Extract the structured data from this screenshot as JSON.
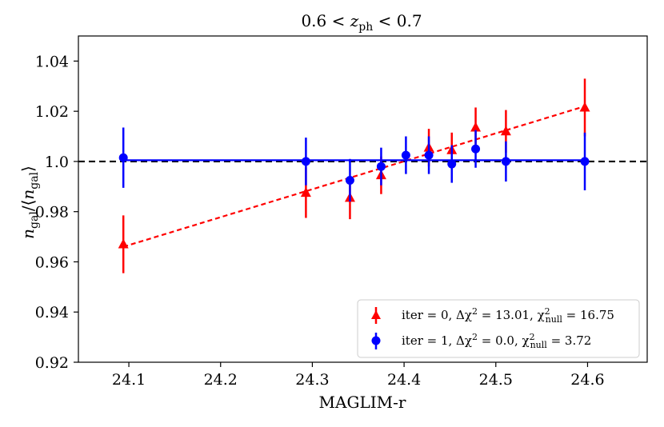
{
  "chart_data": {
    "type": "scatter",
    "title": "0.6 < z_ph < 0.7",
    "title_parts": {
      "lhs": "0.6 < ",
      "var": "z",
      "sub": "ph",
      "rhs": " < 0.7"
    },
    "xlabel": "MAGLIM-r",
    "ylabel": "n_gal/⟨n_gal⟩",
    "ylabel_parts": {
      "n1": "n",
      "sub1": "gal",
      "mid": "/⟨",
      "n2": "n",
      "sub2": "gal",
      "end": "⟩"
    },
    "xlim": [
      24.045,
      24.665
    ],
    "ylim": [
      0.92,
      1.05
    ],
    "xticks": [
      "24.1",
      "24.2",
      "24.3",
      "24.4",
      "24.5",
      "24.6"
    ],
    "yticks": [
      "0.92",
      "0.94",
      "0.96",
      "0.98",
      "1.0",
      "1.02",
      "1.04"
    ],
    "reference_line": {
      "y": 1.0,
      "style": "dashed",
      "color": "#000000"
    },
    "colors": {
      "iter0": "#ff0000",
      "iter1": "#0000ff"
    },
    "series": [
      {
        "name": "iter0",
        "label": "iter = 0, Δχ² = 13.01, χ²null = 16.75",
        "label_parts": {
          "pre": "iter = 0, Δχ",
          "sup": "2",
          "mid": " = 13.01, χ",
          "sup2": "2",
          "sub2": "null",
          "post": " = 16.75"
        },
        "marker": "triangle",
        "color": "#ff0000",
        "x": [
          24.094,
          24.293,
          24.341,
          24.375,
          24.427,
          24.452,
          24.478,
          24.511,
          24.597
        ],
        "y": [
          0.967,
          0.9875,
          0.9855,
          0.9945,
          1.0055,
          1.0045,
          1.0135,
          1.012,
          1.0215
        ],
        "yerr": [
          0.0115,
          0.01,
          0.0085,
          0.0075,
          0.0075,
          0.007,
          0.008,
          0.0085,
          0.0115
        ],
        "fit": {
          "x": [
            24.094,
            24.597
          ],
          "y": [
            0.966,
            1.022
          ],
          "style": "dashed"
        }
      },
      {
        "name": "iter1",
        "label": "iter = 1, Δχ² = 0.0, χ²null = 3.72",
        "label_parts": {
          "pre": "iter = 1, Δχ",
          "sup": "2",
          "mid": " = 0.0, χ",
          "sup2": "2",
          "sub2": "null",
          "post": " = 3.72"
        },
        "marker": "circle",
        "color": "#0000ff",
        "x": [
          24.094,
          24.293,
          24.341,
          24.375,
          24.402,
          24.427,
          24.452,
          24.478,
          24.511,
          24.597
        ],
        "y": [
          1.0015,
          1.0,
          0.9925,
          0.998,
          1.0025,
          1.0025,
          0.999,
          1.005,
          1.0,
          1.0
        ],
        "yerr": [
          0.012,
          0.0095,
          0.0085,
          0.0075,
          0.0075,
          0.0075,
          0.0075,
          0.0075,
          0.008,
          0.0115
        ],
        "fit": {
          "x": [
            24.094,
            24.597
          ],
          "y": [
            1.0005,
            1.0005
          ],
          "style": "solid"
        }
      }
    ],
    "legend_position": "lower-right"
  }
}
